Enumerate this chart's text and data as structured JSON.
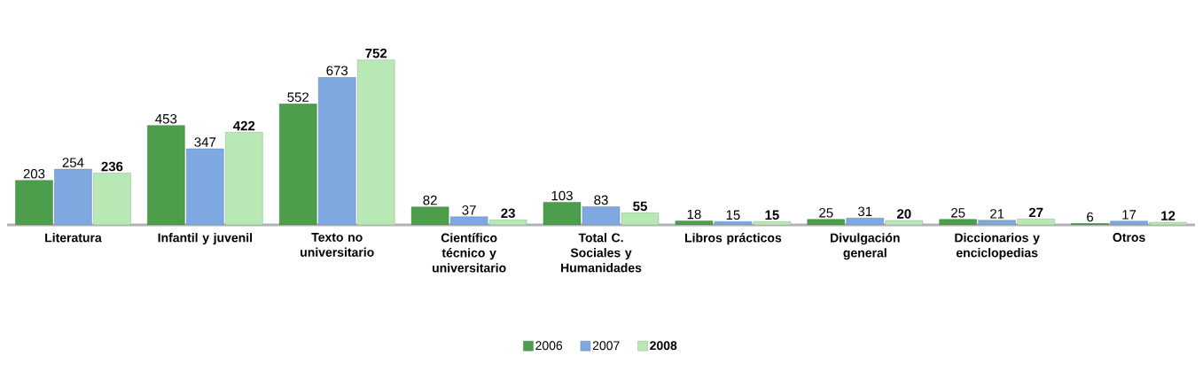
{
  "chart_data": {
    "type": "bar",
    "categories": [
      "Literatura",
      "Infantil y juvenil",
      "Texto no universitario",
      "Científico técnico y universitario",
      "Total C. Sociales y Humanidades",
      "Libros prácticos",
      "Divulgación general",
      "Diccionarios y enciclopedias",
      "Otros"
    ],
    "series": [
      {
        "name": "2006",
        "color": "#4c9e4c",
        "values": [
          203,
          453,
          552,
          82,
          103,
          18,
          25,
          25,
          6
        ]
      },
      {
        "name": "2007",
        "color": "#7ea8e0",
        "values": [
          254,
          347,
          673,
          37,
          83,
          15,
          31,
          21,
          17
        ]
      },
      {
        "name": "2008",
        "color": "#b8e8b4",
        "values": [
          236,
          422,
          752,
          23,
          55,
          15,
          20,
          27,
          12
        ]
      }
    ],
    "data_labels": true,
    "legend": "bottom"
  }
}
